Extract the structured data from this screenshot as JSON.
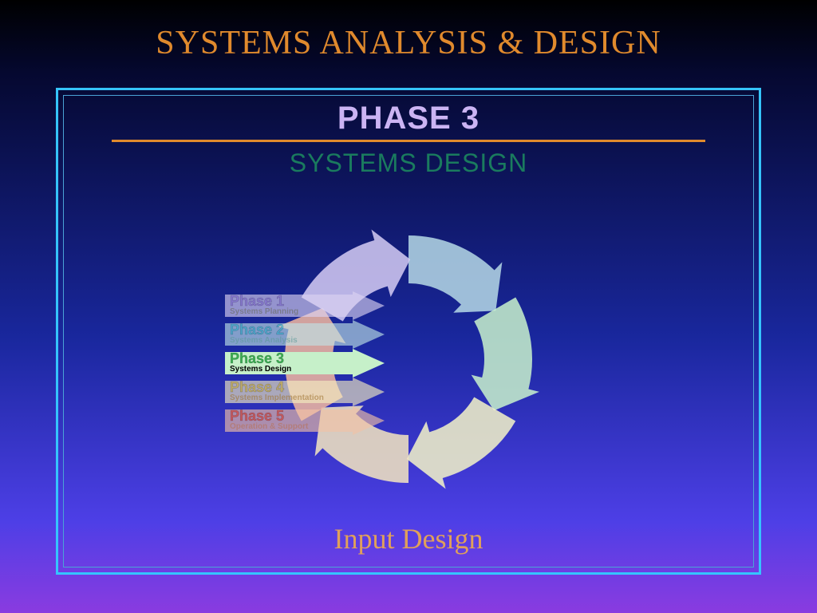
{
  "colors": {
    "title": "#e08a2d",
    "frame_border": "#35c4ff",
    "phase_heading": "#cbb4f3",
    "orange_line": "#e08a2d",
    "subtitle": "#1a7b5e",
    "bottom_caption": "#e0a05a"
  },
  "main_title": "SYSTEMS ANALYSIS & DESIGN",
  "phase_heading": "PHASE 3",
  "subtitle": "SYSTEMS DESIGN",
  "bottom_caption": "Input Design",
  "cycle_segments": [
    {
      "color": "#b6d9e6"
    },
    {
      "color": "#c9f2cd"
    },
    {
      "color": "#f4f5c8"
    },
    {
      "color": "#f4e6c0"
    },
    {
      "color": "#f2b9a0"
    },
    {
      "color": "#d6cdf4"
    }
  ],
  "phase_list": [
    {
      "title": "Phase 1",
      "sub": "Systems Planning",
      "bg": "#dcd3f1",
      "title_color": "#9a87d8",
      "sub_color": "#8b8b8b",
      "active": false
    },
    {
      "title": "Phase 2",
      "sub": "Systems Analysis",
      "bg": "#bfe3e6",
      "title_color": "#58bcd2",
      "sub_color": "#7ab0b0",
      "active": false
    },
    {
      "title": "Phase 3",
      "sub": "Systems Design",
      "bg": "#c6f0c9",
      "title_color": "#3aae52",
      "sub_color": "#000000",
      "active": true
    },
    {
      "title": "Phase 4",
      "sub": "Systems Implementation",
      "bg": "#f4edc0",
      "title_color": "#d9c25e",
      "sub_color": "#b99a5e",
      "active": false
    },
    {
      "title": "Phase 5",
      "sub": "Operation & Support",
      "bg": "#f2c1a6",
      "title_color": "#e0604d",
      "sub_color": "#c98a6e",
      "active": false
    }
  ],
  "fonts": {
    "main_title_size": 42,
    "phase_heading_size": 40,
    "subtitle_size": 32,
    "bottom_caption_size": 36,
    "phase_item_title_size": 18,
    "phase_item_sub_size": 10
  }
}
